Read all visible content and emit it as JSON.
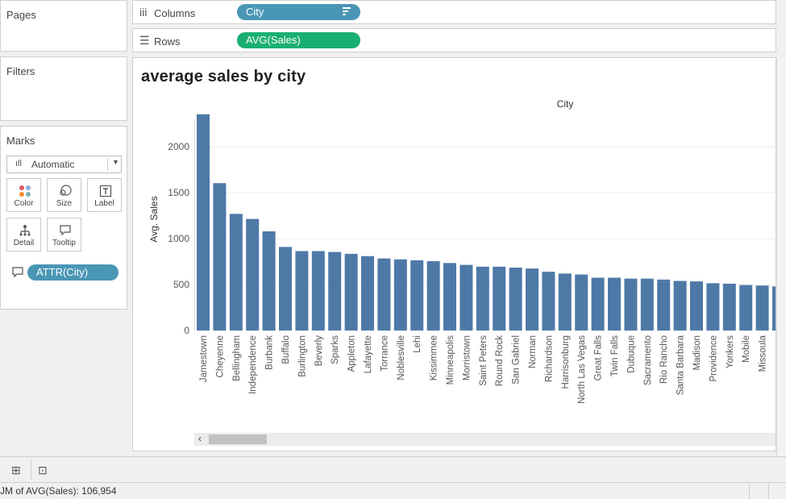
{
  "pages_label": "Pages",
  "filters_label": "Filters",
  "marks": {
    "title": "Marks",
    "mark_type": "Automatic",
    "buttons": [
      "Color",
      "Size",
      "Label",
      "Detail",
      "Tooltip"
    ],
    "pill": "ATTR(City)"
  },
  "shelves": {
    "columns_label": "Columns",
    "columns_pill": "City",
    "rows_label": "Rows",
    "rows_pill": "AVG(Sales)"
  },
  "colors": {
    "bar": "#4e79a7",
    "pill_blue": "#4a96b5",
    "pill_green": "#1aaf72"
  },
  "status_text": "JM of AVG(Sales): 106,954",
  "chart_data": {
    "type": "bar",
    "title": "average sales by city",
    "header": "City",
    "ylabel": "Avg. Sales",
    "ylim": [
      0,
      2300
    ],
    "yticks": [
      0,
      500,
      1000,
      1500,
      2000
    ],
    "categories": [
      "Jamestown",
      "Cheyenne",
      "Bellingham",
      "Independence",
      "Burbank",
      "Buffalo",
      "Burlington",
      "Beverly",
      "Sparks",
      "Appleton",
      "Lafayette",
      "Torrance",
      "Noblesville",
      "Lehi",
      "Kissimmee",
      "Minneapolis",
      "Morristown",
      "Saint Peters",
      "Round Rock",
      "San Gabriel",
      "Norman",
      "Richardson",
      "Harrisonburg",
      "North Las Vegas",
      "Great Falls",
      "Twin Falls",
      "Dubuque",
      "Sacramento",
      "Rio Rancho",
      "Santa Barbara",
      "Madison",
      "Providence",
      "Yonkers",
      "Mobile",
      "Missoula"
    ],
    "values": [
      2355,
      1605,
      1270,
      1215,
      1080,
      910,
      865,
      865,
      855,
      835,
      810,
      785,
      775,
      765,
      755,
      735,
      715,
      695,
      695,
      685,
      675,
      640,
      620,
      610,
      575,
      575,
      565,
      565,
      555,
      540,
      535,
      515,
      510,
      495,
      490
    ],
    "cut_value": 480
  }
}
